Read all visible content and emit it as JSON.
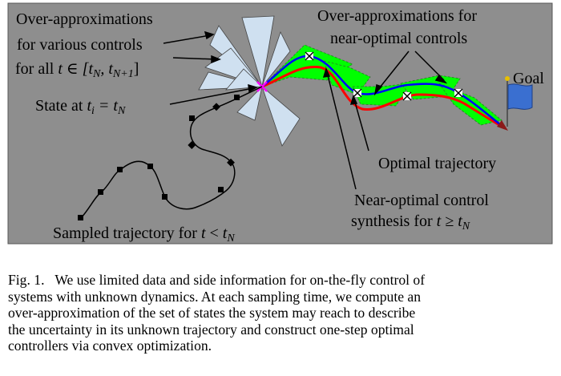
{
  "figure": {
    "labels": {
      "over_approx_various_1": "Over-approximations",
      "over_approx_various_2": "for various controls",
      "over_approx_various_3a": "for all ",
      "over_approx_various_3b": "t ∈ [t",
      "over_approx_various_3c": "N",
      "over_approx_various_3d": ", t",
      "over_approx_various_3e": "N+1",
      "over_approx_various_3f": "]",
      "over_approx_near_1": "Over-approximations for",
      "over_approx_near_2": "near-optimal controls",
      "goal": "Goal",
      "state_at_a": "State at ",
      "state_at_b": "t",
      "state_at_c": "i",
      "state_at_d": " = t",
      "state_at_e": "N",
      "optimal_trajectory": "Optimal trajectory",
      "near_optimal_1": "Near-optimal control",
      "near_optimal_2a": "synthesis for ",
      "near_optimal_2b": "t ≥ t",
      "near_optimal_2c": "N",
      "sampled_a": "Sampled trajectory for ",
      "sampled_b": "t",
      "sampled_c": " < ",
      "sampled_d": "t",
      "sampled_e": "N"
    },
    "colors": {
      "background": "#8e8e8e",
      "triangle_fill": "#cfe0f0",
      "green_region": "#00ff00",
      "red_trajectory": "#ff0000",
      "blue_trajectory": "#0000ff",
      "state_marker": "#ff00ff",
      "flag": "#3a6fd0"
    }
  },
  "caption": {
    "lines": [
      "Fig. 1.   We use limited data and side information for on-the-fly control of",
      "systems with unknown dynamics. At each sampling time, we compute an",
      "over-approximation of the set of states the system may reach to describe",
      "the uncertainty in its unknown trajectory and construct one-step optimal",
      "controllers via convex optimization."
    ]
  }
}
